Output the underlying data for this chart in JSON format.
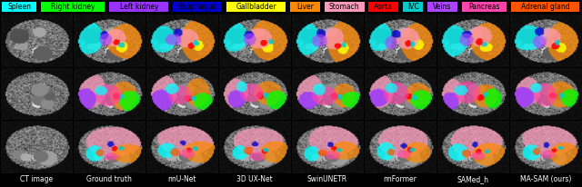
{
  "legend_items": [
    {
      "label": "Spleen",
      "color": "#00FFFF"
    },
    {
      "label": "Right kidney",
      "color": "#00FF00"
    },
    {
      "label": "Left kidney",
      "color": "#9933FF"
    },
    {
      "label": "Esophagus",
      "color": "#0000CC"
    },
    {
      "label": "Gallbladder",
      "color": "#FFFF00"
    },
    {
      "label": "Liver",
      "color": "#FF8800"
    },
    {
      "label": "Stomach",
      "color": "#FF99BB"
    },
    {
      "label": "Aorta",
      "color": "#FF0000"
    },
    {
      "label": "IVC",
      "color": "#00CCCC"
    },
    {
      "label": "Veins",
      "color": "#AA44FF"
    },
    {
      "label": "Pancreas",
      "color": "#FF44AA"
    },
    {
      "label": "Adrenal gland",
      "color": "#FF5500"
    }
  ],
  "col_labels": [
    "CT image",
    "Ground truth",
    "nnU-Net",
    "3D UX-Net",
    "SwinUNETR",
    "nnFormer",
    "SAMed_h",
    "MA-SAM (ours)"
  ],
  "n_rows": 3,
  "n_cols": 8,
  "background_color": "#000000",
  "legend_text_color": "#000000",
  "legend_fontsize": 5.5,
  "col_label_fontsize": 5.5,
  "fig_width": 6.4,
  "fig_height": 2.06,
  "dpi": 100
}
